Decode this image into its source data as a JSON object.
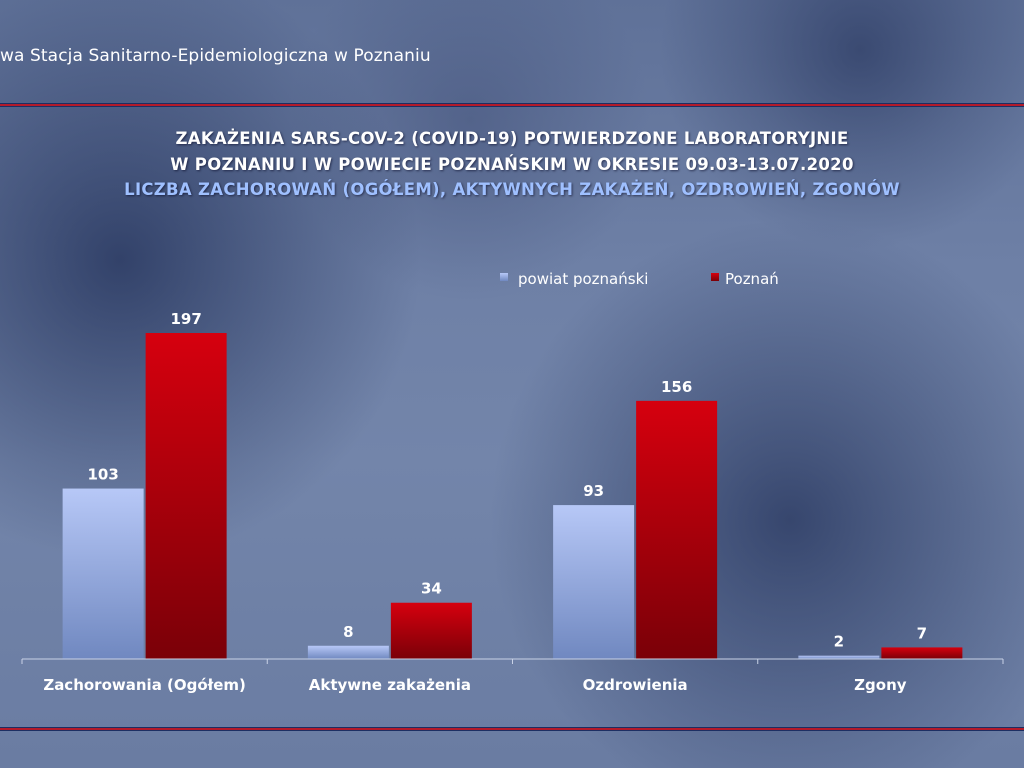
{
  "header": {
    "institution": "wa Stacja Sanitarno-Epidemiologiczna w Poznaniu"
  },
  "title": {
    "line1": "ZAKAŻENIA SARS-COV-2 (COVID-19) POTWIERDZONE LABORATORYJNIE",
    "line2": "W POZNANIU I W POWIECIE POZNAŃSKIM W OKRESIE 09.03-13.07.2020",
    "line3": "LICZBA ZACHOROWAŃ (OGÓŁEM), AKTYWNYCH ZAKAŻEŃ, OZDROWIEŃ, ZGONÓW"
  },
  "colors": {
    "powiat_bar": "#a9bdf2",
    "poznan_bar": "#c8000c",
    "title_accent": "#9fc0ff",
    "rule_red": "#b31a2a"
  },
  "chart_data": {
    "type": "bar",
    "categories": [
      "Zachorowania (Ogółem)",
      "Aktywne zakażenia",
      "Ozdrowienia",
      "Zgony"
    ],
    "series": [
      {
        "name": "powiat poznański",
        "values": [
          103,
          8,
          93,
          2
        ]
      },
      {
        "name": "Poznań",
        "values": [
          197,
          34,
          156,
          7
        ]
      }
    ],
    "ylim": [
      0,
      200
    ],
    "legend": "top-right",
    "grid": false,
    "data_labels": true
  }
}
